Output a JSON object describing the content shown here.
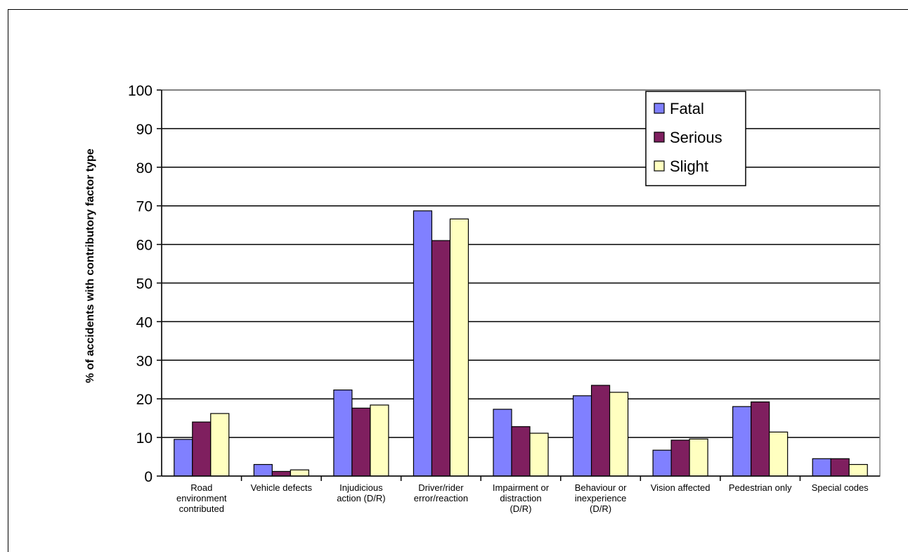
{
  "chart_data": {
    "type": "bar",
    "title": "",
    "xlabel": "",
    "ylabel": "% of accidents with contributory factor type",
    "ylim": [
      0,
      100
    ],
    "yticks": [
      0,
      10,
      20,
      30,
      40,
      50,
      60,
      70,
      80,
      90,
      100
    ],
    "grid": true,
    "legend_position": "top-right",
    "categories": [
      [
        "Road",
        "environment",
        "contributed"
      ],
      [
        "Vehicle defects"
      ],
      [
        "Injudicious",
        "action (D/R)"
      ],
      [
        "Driver/rider",
        "error/reaction"
      ],
      [
        "Impairment or",
        "distraction",
        "(D/R)"
      ],
      [
        "Behaviour or",
        "inexperience",
        "(D/R)"
      ],
      [
        "Vision affected"
      ],
      [
        "Pedestrian only"
      ],
      [
        "Special codes"
      ]
    ],
    "series": [
      {
        "name": "Fatal",
        "color": "#8080ff",
        "values": [
          9.5,
          3.0,
          22.3,
          68.7,
          17.3,
          20.8,
          6.7,
          18.0,
          4.5
        ]
      },
      {
        "name": "Serious",
        "color": "#7f1f5f",
        "values": [
          14.0,
          1.2,
          17.6,
          61.0,
          12.8,
          23.5,
          9.3,
          19.2,
          4.5
        ]
      },
      {
        "name": "Slight",
        "color": "#ffffc0",
        "values": [
          16.2,
          1.6,
          18.4,
          66.6,
          11.1,
          21.7,
          9.6,
          11.4,
          3.0
        ]
      }
    ]
  }
}
